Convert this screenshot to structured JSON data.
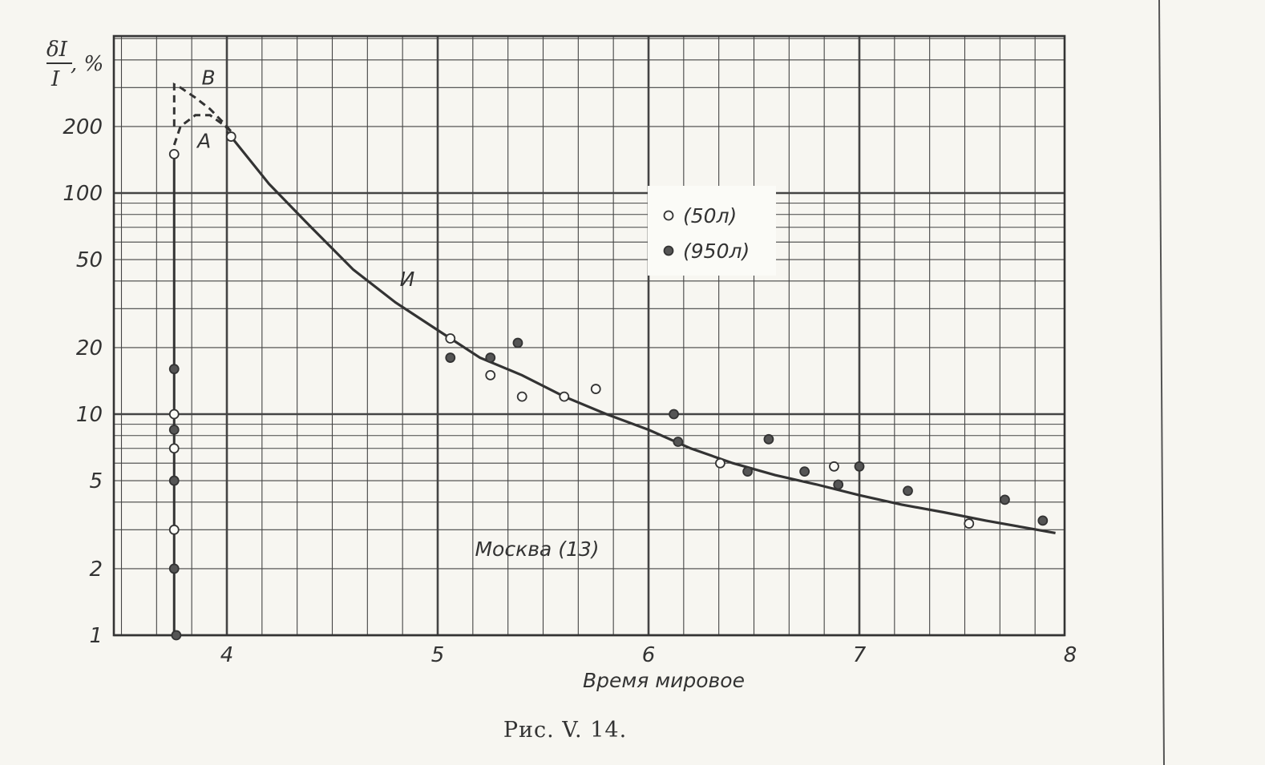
{
  "chart_data": {
    "type": "scatter",
    "title": "",
    "ylabel_numerator": "δI",
    "ylabel_denominator": "I",
    "ylabel_unit": ", %",
    "xlabel": "Время мировое",
    "yscale": "log",
    "xlim": [
      3.55,
      8
    ],
    "ylim": [
      1,
      400
    ],
    "x_ticks": [
      "4",
      "5",
      "6",
      "7",
      "8"
    ],
    "x_tick_values": [
      4,
      5,
      6,
      7,
      8
    ],
    "y_ticks": [
      "1",
      "2",
      "5",
      "10",
      "20",
      "50",
      "100",
      "200"
    ],
    "y_tick_values": [
      1,
      2,
      5,
      10,
      20,
      50,
      100,
      200
    ],
    "grid": true,
    "legend_position": "upper-center",
    "annotation": "Москва (13)",
    "caption": "Рис. V. 14.",
    "series": [
      {
        "name": "(50л)",
        "marker": "open-circle",
        "x": [
          3.75,
          3.75,
          3.75,
          3.75,
          4.02,
          5.06,
          5.25,
          5.4,
          5.6,
          5.75,
          6.34,
          6.88,
          7.52
        ],
        "y": [
          150,
          10,
          7,
          3,
          180,
          22,
          15,
          12,
          12,
          13,
          6,
          5.8,
          3.2
        ]
      },
      {
        "name": "(950л)",
        "marker": "filled-circle",
        "x": [
          3.75,
          3.75,
          3.75,
          3.75,
          3.76,
          5.06,
          5.25,
          5.38,
          6.12,
          6.14,
          6.47,
          6.57,
          6.74,
          6.9,
          7.0,
          7.23,
          7.69,
          7.87
        ],
        "y": [
          16,
          8.5,
          5,
          2,
          1,
          18,
          18,
          21,
          10,
          7.5,
          5.5,
          7.7,
          5.5,
          4.8,
          5.8,
          4.5,
          4.1,
          3.3
        ]
      }
    ],
    "curves": [
      {
        "name": "И",
        "style": "solid",
        "x": [
          4.0,
          4.2,
          4.4,
          4.6,
          4.8,
          5.0,
          5.2,
          5.4,
          5.6,
          5.8,
          6.0,
          6.2,
          6.4,
          6.6,
          6.8,
          7.0,
          7.2,
          7.4,
          7.6,
          7.8,
          7.93
        ],
        "y": [
          190,
          110,
          70,
          45,
          32,
          24,
          18,
          15,
          12,
          10,
          8.5,
          7,
          6,
          5.3,
          4.8,
          4.3,
          3.9,
          3.6,
          3.3,
          3.05,
          2.9
        ]
      },
      {
        "name": "A",
        "style": "dashed",
        "x": [
          3.75,
          3.78,
          3.85,
          3.92,
          3.98,
          4.02
        ],
        "y": [
          165,
          200,
          225,
          225,
          205,
          190
        ]
      },
      {
        "name": "B",
        "style": "dashed",
        "x": [
          3.75,
          3.75,
          3.78,
          3.85,
          3.92,
          3.98,
          4.02
        ],
        "y": [
          200,
          310,
          300,
          270,
          240,
          210,
          190
        ]
      }
    ]
  }
}
